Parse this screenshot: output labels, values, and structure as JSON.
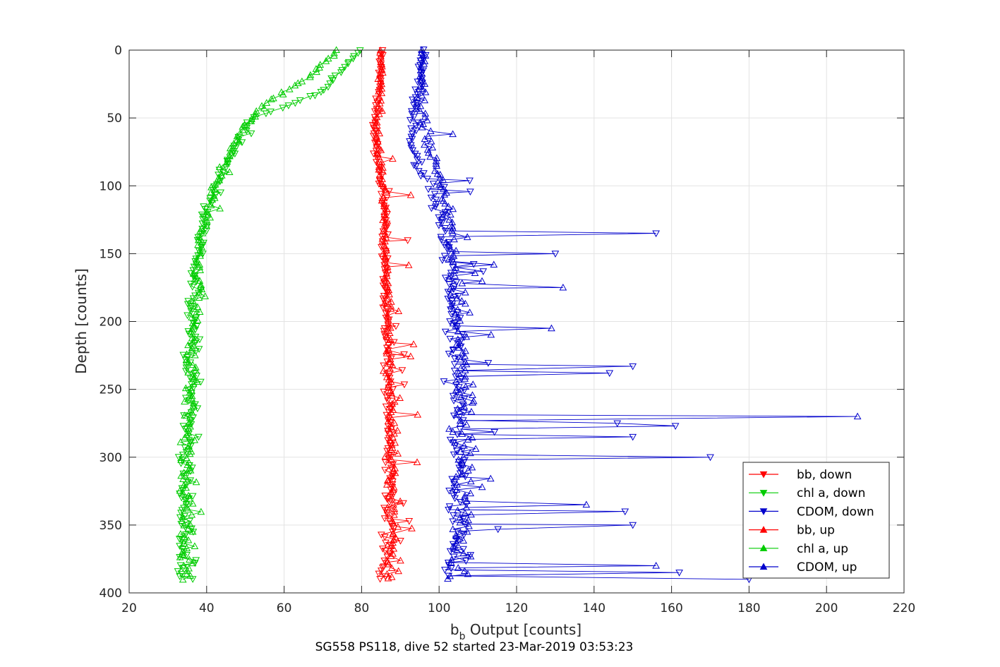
{
  "chart_data": {
    "type": "line",
    "title": "",
    "xlabel_main": "b",
    "xlabel_sub": "b",
    "xlabel_rest": " Output [counts]",
    "ylabel": "Depth [counts]",
    "caption": "SG558 PS118, dive 52 started 23-Mar-2019 03:53:23",
    "xlim": [
      20,
      220
    ],
    "ylim": [
      0,
      400
    ],
    "y_reversed": true,
    "grid": true,
    "xticks": [
      "20",
      "40",
      "60",
      "80",
      "100",
      "120",
      "140",
      "160",
      "180",
      "200",
      "220"
    ],
    "yticks": [
      "0",
      "50",
      "100",
      "150",
      "200",
      "250",
      "300",
      "350",
      "400"
    ],
    "legend_position": "lower-right",
    "legend": [
      "bb, down",
      "chl a, down",
      "CDOM, down",
      "bb, up",
      "chl a, up",
      "CDOM, up"
    ],
    "series": [
      {
        "name": "bb, down",
        "color": "#ff0000",
        "marker": "triangle-down",
        "depth": [
          0,
          20,
          40,
          60,
          80,
          100,
          120,
          140,
          160,
          180,
          200,
          220,
          240,
          260,
          280,
          300,
          320,
          340,
          360,
          380,
          390
        ],
        "values": [
          85,
          85,
          84,
          83,
          84,
          85,
          86,
          86,
          86,
          86,
          86,
          87,
          87,
          87,
          87,
          87,
          87,
          87,
          87,
          86,
          85
        ]
      },
      {
        "name": "chl a, down",
        "color": "#00cc00",
        "marker": "triangle-down",
        "depth": [
          0,
          10,
          20,
          30,
          40,
          50,
          70,
          100,
          130,
          160,
          200,
          250,
          300,
          350,
          390
        ],
        "values": [
          80,
          76,
          73,
          70,
          62,
          52,
          48,
          42,
          39,
          37,
          36,
          36,
          34,
          34,
          34
        ]
      },
      {
        "name": "CDOM, down",
        "color": "#0000cc",
        "marker": "triangle-down",
        "depth": [
          0,
          20,
          40,
          60,
          80,
          100,
          120,
          140,
          160,
          180,
          200,
          220,
          240,
          260,
          280,
          300,
          320,
          340,
          360,
          380,
          390
        ],
        "values": [
          96,
          95,
          94,
          93,
          94,
          97,
          100,
          102,
          103,
          103,
          104,
          104,
          105,
          105,
          105,
          105,
          105,
          105,
          105,
          104,
          100
        ]
      },
      {
        "name": "bb, up",
        "color": "#ff0000",
        "marker": "triangle-up",
        "depth": [
          390,
          360,
          330,
          300,
          270,
          240,
          210,
          180,
          150,
          120,
          90,
          60,
          30,
          0
        ],
        "values": [
          87,
          88,
          88,
          88,
          88,
          87,
          87,
          87,
          86,
          86,
          85,
          84,
          85,
          85
        ]
      },
      {
        "name": "chl a, up",
        "color": "#00cc00",
        "marker": "triangle-up",
        "depth": [
          390,
          350,
          300,
          250,
          200,
          150,
          100,
          60,
          40,
          20,
          0
        ],
        "values": [
          35,
          35,
          35,
          36,
          37,
          38,
          42,
          49,
          55,
          66,
          74
        ]
      },
      {
        "name": "CDOM, up",
        "color": "#0000cc",
        "marker": "triangle-up",
        "depth": [
          390,
          360,
          330,
          300,
          270,
          240,
          210,
          180,
          150,
          120,
          90,
          60,
          30,
          0
        ],
        "values": [
          105,
          106,
          106,
          106,
          106,
          106,
          105,
          104,
          103,
          102,
          100,
          96,
          95,
          96
        ]
      }
    ],
    "annotations": [
      {
        "series": "CDOM, down",
        "depth": 135,
        "value": 156
      },
      {
        "series": "CDOM, down",
        "depth": 150,
        "value": 130
      },
      {
        "series": "CDOM, up",
        "depth": 175,
        "value": 132
      },
      {
        "series": "CDOM, up",
        "depth": 205,
        "value": 129
      },
      {
        "series": "CDOM, down",
        "depth": 233,
        "value": 150
      },
      {
        "series": "CDOM, down",
        "depth": 238,
        "value": 144
      },
      {
        "series": "CDOM, up",
        "depth": 270,
        "value": 208
      },
      {
        "series": "CDOM, down",
        "depth": 275,
        "value": 146
      },
      {
        "series": "CDOM, down",
        "depth": 277,
        "value": 161
      },
      {
        "series": "CDOM, down",
        "depth": 285,
        "value": 150
      },
      {
        "series": "CDOM, down",
        "depth": 300,
        "value": 170
      },
      {
        "series": "CDOM, up",
        "depth": 335,
        "value": 138
      },
      {
        "series": "CDOM, down",
        "depth": 340,
        "value": 148
      },
      {
        "series": "CDOM, down",
        "depth": 350,
        "value": 150
      },
      {
        "series": "CDOM, up",
        "depth": 380,
        "value": 156
      },
      {
        "series": "CDOM, down",
        "depth": 385,
        "value": 162
      },
      {
        "series": "CDOM, down",
        "depth": 390,
        "value": 180
      }
    ]
  }
}
